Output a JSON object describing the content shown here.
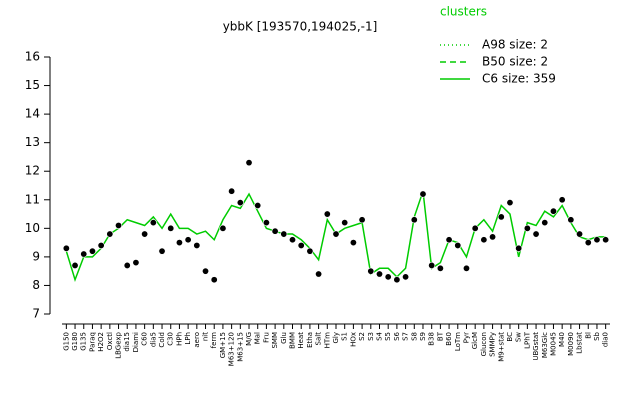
{
  "chart_data": {
    "type": "line",
    "title": "ybbK [193570,194025,-1]",
    "categories": [
      "G150",
      "G180",
      "G135",
      "Paraq",
      "H2O2",
      "Oxctl",
      "LBGexp",
      "dia15",
      "Diami",
      "C60",
      "dia5",
      "Cold",
      "C30",
      "HPh",
      "LPh",
      "aero",
      "nit",
      "ferm",
      "GM+15",
      "M63+120",
      "M63+15",
      "M/G",
      "Mal",
      "Fru",
      "SMM",
      "Glu",
      "BMM",
      "Heat",
      "Etha",
      "Salt",
      "HTm",
      "Gly",
      "S1",
      "HOx",
      "S2",
      "S3",
      "S4",
      "S5",
      "S6",
      "S7",
      "S8",
      "S9",
      "B38",
      "BT",
      "B60",
      "LoTm",
      "Pyr",
      "GlcM",
      "Glucon",
      "SMMPy",
      "M9+stat",
      "BC",
      "Sw",
      "LPhT",
      "UBGstat",
      "M63Glc",
      "M0045",
      "M40",
      "M0090",
      "Lbstat",
      "Bl",
      "Sb",
      "dia0"
    ],
    "points": {
      "color": "#000000",
      "values": [
        9.3,
        8.7,
        9.1,
        9.2,
        9.4,
        9.8,
        10.1,
        8.7,
        8.8,
        9.8,
        10.2,
        9.2,
        10.0,
        9.5,
        9.6,
        9.4,
        8.5,
        8.2,
        10.0,
        11.3,
        10.9,
        12.3,
        10.8,
        10.2,
        9.9,
        9.8,
        9.6,
        9.4,
        9.2,
        8.4,
        10.5,
        9.8,
        10.2,
        9.5,
        10.3,
        8.5,
        8.4,
        8.3,
        8.2,
        8.3,
        10.3,
        11.2,
        8.7,
        8.6,
        9.6,
        9.4,
        8.6,
        10.0,
        9.6,
        9.7,
        10.4,
        10.9,
        9.3,
        10.0,
        9.8,
        10.2,
        10.6,
        11.0,
        10.3,
        9.8,
        9.5,
        9.6,
        9.6
      ]
    },
    "legend_title": "clusters",
    "legend": [
      {
        "name": "A98 size: 2",
        "dash": "1,3"
      },
      {
        "name": "B50 size: 2",
        "dash": "6,4"
      },
      {
        "name": "C6 size: 359",
        "dash": "none"
      }
    ],
    "series": [
      {
        "name": "C6 size: 359",
        "color": "#00cc00",
        "values": [
          9.2,
          8.2,
          9.0,
          9.0,
          9.3,
          9.8,
          10.0,
          10.3,
          10.2,
          10.1,
          10.4,
          10.0,
          10.5,
          10.0,
          10.0,
          9.8,
          9.9,
          9.6,
          10.3,
          10.8,
          10.7,
          11.2,
          10.6,
          10.0,
          9.9,
          9.8,
          9.8,
          9.6,
          9.3,
          8.9,
          10.3,
          9.8,
          10.0,
          10.1,
          10.2,
          8.4,
          8.6,
          8.6,
          8.3,
          8.6,
          10.4,
          11.3,
          8.6,
          8.8,
          9.6,
          9.5,
          9.0,
          10.0,
          10.3,
          9.9,
          10.8,
          10.5,
          9.0,
          10.2,
          10.1,
          10.6,
          10.4,
          10.8,
          10.2,
          9.7,
          9.6,
          9.7,
          9.7
        ]
      }
    ],
    "ylim": [
      7,
      16
    ],
    "yticks": [
      7,
      8,
      9,
      10,
      11,
      12,
      13,
      14,
      15,
      16
    ]
  }
}
